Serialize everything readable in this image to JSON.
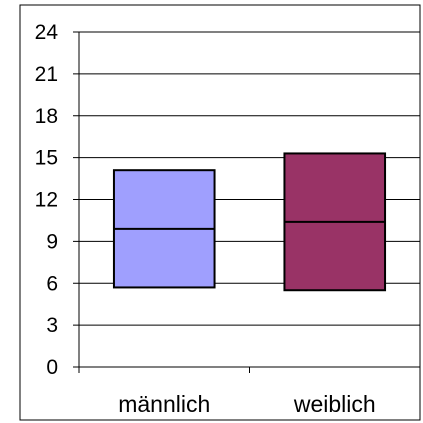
{
  "chart_data": {
    "type": "box",
    "title": "",
    "xlabel": "",
    "ylabel": "",
    "ylim": [
      0,
      24
    ],
    "y_ticks": [
      "0",
      "3",
      "6",
      "9",
      "12",
      "15",
      "18",
      "21",
      "24"
    ],
    "grid": true,
    "legend": "none",
    "categories": [
      "männlich",
      "weiblich"
    ],
    "boxes": [
      {
        "category": "männlich",
        "q1": 5.7,
        "median": 9.9,
        "q3": 14.1,
        "color": "#9f9ffe"
      },
      {
        "category": "weiblich",
        "q1": 5.5,
        "median": 10.4,
        "q3": 15.3,
        "color": "#993366"
      }
    ]
  }
}
